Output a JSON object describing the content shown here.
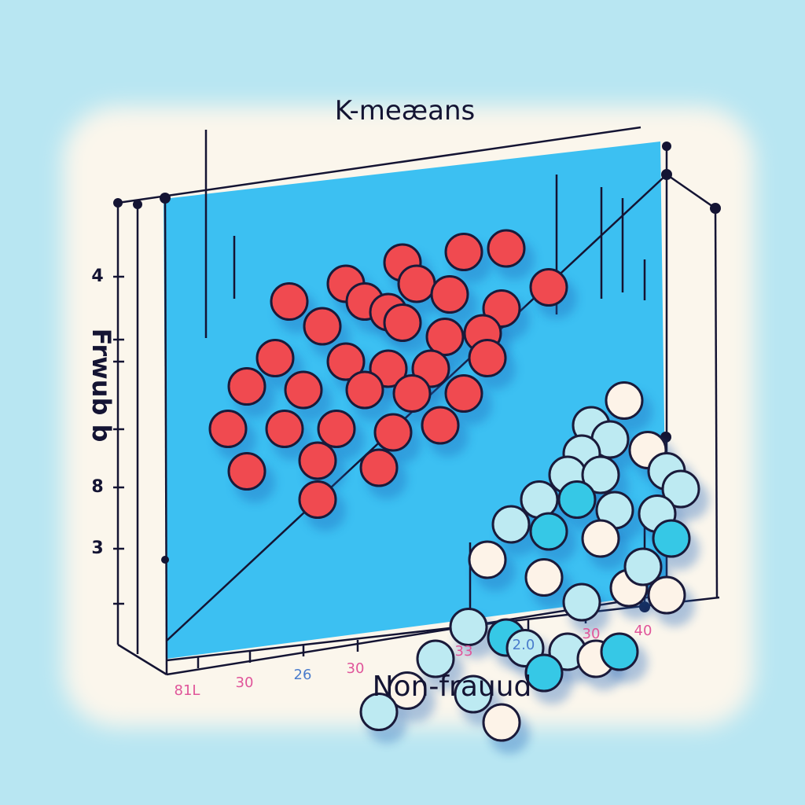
{
  "colors": {
    "background": "#b8e6f2",
    "paper": "#fbf6ec",
    "plane": "#3cc0f2",
    "plane_edge": "#1a1a3a",
    "fraud": "#f04a50",
    "nonfraud_light": "#bdeaf2",
    "nonfraud_cyan": "#36c8e6",
    "nonfraud_cream": "#fdf3e8",
    "axis": "#141433"
  },
  "chart_data": {
    "type": "scatter",
    "title": "K-meæans",
    "xlabel": "Non-frauud",
    "ylabel": "Frwub b",
    "ytick_labels": [
      {
        "label": "4",
        "y": 4
      },
      {
        "label": "8",
        "y": 8
      },
      {
        "label": "3",
        "y": 3
      }
    ],
    "xtick_labels": [
      {
        "label": "81L",
        "color": "#e0559a"
      },
      {
        "label": "30",
        "color": "#e0559a"
      },
      {
        "label": "26",
        "color": "#4a7ccc"
      },
      {
        "label": "30",
        "color": "#e0559a"
      },
      {
        "label": "33",
        "color": "#e0559a"
      },
      {
        "label": "2.0",
        "color": "#4a7ccc"
      },
      {
        "label": "30",
        "color": "#e0559a"
      },
      {
        "label": "40",
        "color": "#e0559a"
      }
    ],
    "xlim": [
      0,
      100
    ],
    "ylim": [
      0,
      100
    ],
    "series": [
      {
        "cluster": "fraud",
        "points": [
          {
            "x": 42,
            "y": 84
          },
          {
            "x": 55,
            "y": 87
          },
          {
            "x": 64,
            "y": 88
          },
          {
            "x": 30,
            "y": 78
          },
          {
            "x": 45,
            "y": 78
          },
          {
            "x": 52,
            "y": 75
          },
          {
            "x": 73,
            "y": 77
          },
          {
            "x": 18,
            "y": 73
          },
          {
            "x": 34,
            "y": 73
          },
          {
            "x": 39,
            "y": 70
          },
          {
            "x": 63,
            "y": 71
          },
          {
            "x": 25,
            "y": 66
          },
          {
            "x": 42,
            "y": 67
          },
          {
            "x": 51,
            "y": 63
          },
          {
            "x": 59,
            "y": 64
          },
          {
            "x": 15,
            "y": 57
          },
          {
            "x": 30,
            "y": 56
          },
          {
            "x": 39,
            "y": 54
          },
          {
            "x": 48,
            "y": 54
          },
          {
            "x": 60,
            "y": 57
          },
          {
            "x": 9,
            "y": 49
          },
          {
            "x": 21,
            "y": 48
          },
          {
            "x": 34,
            "y": 48
          },
          {
            "x": 44,
            "y": 47
          },
          {
            "x": 55,
            "y": 47
          },
          {
            "x": 5,
            "y": 37
          },
          {
            "x": 17,
            "y": 37
          },
          {
            "x": 28,
            "y": 37
          },
          {
            "x": 40,
            "y": 36
          },
          {
            "x": 50,
            "y": 38
          },
          {
            "x": 9,
            "y": 25
          },
          {
            "x": 24,
            "y": 28
          },
          {
            "x": 37,
            "y": 26
          },
          {
            "x": 24,
            "y": 17
          }
        ]
      },
      {
        "cluster": "non-fraud",
        "points": [
          {
            "x": 89,
            "y": 45,
            "shade": "cream"
          },
          {
            "x": 82,
            "y": 38,
            "shade": "light"
          },
          {
            "x": 86,
            "y": 34,
            "shade": "light"
          },
          {
            "x": 94,
            "y": 31,
            "shade": "cream"
          },
          {
            "x": 80,
            "y": 30,
            "shade": "light"
          },
          {
            "x": 77,
            "y": 24,
            "shade": "light"
          },
          {
            "x": 84,
            "y": 24,
            "shade": "light"
          },
          {
            "x": 98,
            "y": 25,
            "shade": "light"
          },
          {
            "x": 101,
            "y": 20,
            "shade": "light"
          },
          {
            "x": 71,
            "y": 17,
            "shade": "light"
          },
          {
            "x": 79,
            "y": 17,
            "shade": "cyan"
          },
          {
            "x": 87,
            "y": 14,
            "shade": "light"
          },
          {
            "x": 96,
            "y": 13,
            "shade": "light"
          },
          {
            "x": 65,
            "y": 10,
            "shade": "light"
          },
          {
            "x": 73,
            "y": 8,
            "shade": "cyan"
          },
          {
            "x": 84,
            "y": 6,
            "shade": "cream"
          },
          {
            "x": 99,
            "y": 6,
            "shade": "cyan"
          },
          {
            "x": 60,
            "y": 0,
            "shade": "cream"
          },
          {
            "x": 72,
            "y": -5,
            "shade": "cream"
          },
          {
            "x": 80,
            "y": -12,
            "shade": "light"
          },
          {
            "x": 90,
            "y": -8,
            "shade": "cream"
          },
          {
            "x": 93,
            "y": -2,
            "shade": "light"
          },
          {
            "x": 98,
            "y": -10,
            "shade": "cream"
          },
          {
            "x": 56,
            "y": -19,
            "shade": "light"
          },
          {
            "x": 64,
            "y": -22,
            "shade": "cyan"
          },
          {
            "x": 68,
            "y": -25,
            "shade": "light"
          },
          {
            "x": 49,
            "y": -28,
            "shade": "light"
          },
          {
            "x": 77,
            "y": -26,
            "shade": "light"
          },
          {
            "x": 83,
            "y": -28,
            "shade": "cream"
          },
          {
            "x": 88,
            "y": -26,
            "shade": "cyan"
          },
          {
            "x": 72,
            "y": -32,
            "shade": "cyan"
          },
          {
            "x": 43,
            "y": -37,
            "shade": "cream"
          },
          {
            "x": 57,
            "y": -38,
            "shade": "light"
          },
          {
            "x": 37,
            "y": -43,
            "shade": "light"
          },
          {
            "x": 63,
            "y": -46,
            "shade": "cream"
          }
        ]
      }
    ],
    "grid": false,
    "legend": "none"
  }
}
